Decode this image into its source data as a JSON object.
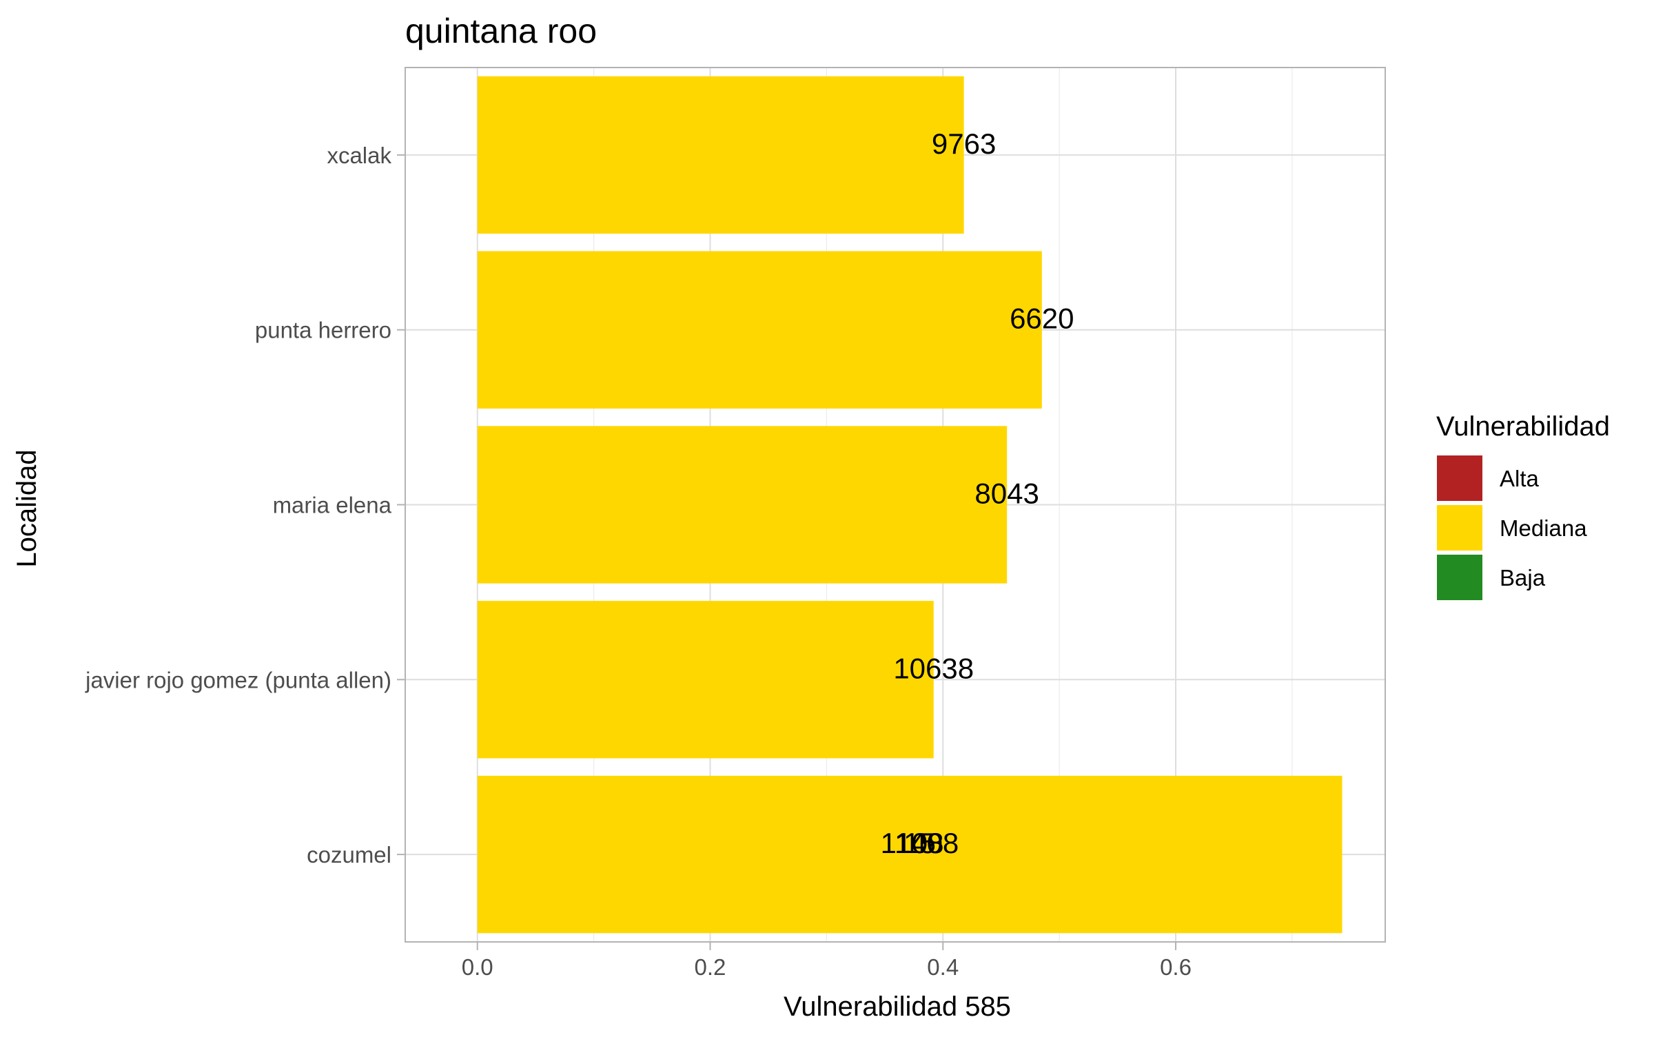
{
  "chart_data": {
    "type": "bar",
    "orientation": "horizontal",
    "title": "quintana roo",
    "xlabel": "Vulnerabilidad 585",
    "ylabel": "Localidad",
    "xlim": [
      -0.062,
      0.78
    ],
    "xticks": [
      0.0,
      0.2,
      0.4,
      0.6
    ],
    "xtick_labels": [
      "0.0",
      "0.2",
      "0.4",
      "0.6"
    ],
    "grid": true,
    "categories": [
      "xcalak",
      "punta herrero",
      "maria elena",
      "javier rojo gomez (punta allen)",
      "cozumel"
    ],
    "values": [
      0.418,
      0.485,
      0.455,
      0.392,
      0.743
    ],
    "bar_labels": [
      {
        "category": "xcalak",
        "text": "9763",
        "x": 0.418
      },
      {
        "category": "punta herrero",
        "text": "6620",
        "x": 0.485
      },
      {
        "category": "maria elena",
        "text": "8043",
        "x": 0.455
      },
      {
        "category": "javier rojo gomez (punta allen)",
        "text": "10638",
        "x": 0.392
      },
      {
        "category": "cozumel",
        "text": "11408",
        "x": 0.38
      },
      {
        "category": "cozumel",
        "text": "108",
        "x": 0.38
      },
      {
        "category": "cozumel",
        "text": "15",
        "x": 0.38
      }
    ],
    "series": [
      {
        "category_group": "Mediana",
        "color": "#FFD700",
        "values": [
          0.418,
          0.485,
          0.455,
          0.392,
          0.743
        ]
      }
    ],
    "legend": {
      "title": "Vulnerabilidad",
      "position": "right",
      "items": [
        {
          "label": "Alta",
          "color": "#B22222"
        },
        {
          "label": "Mediana",
          "color": "#FFD700"
        },
        {
          "label": "Baja",
          "color": "#228B22"
        }
      ]
    }
  }
}
